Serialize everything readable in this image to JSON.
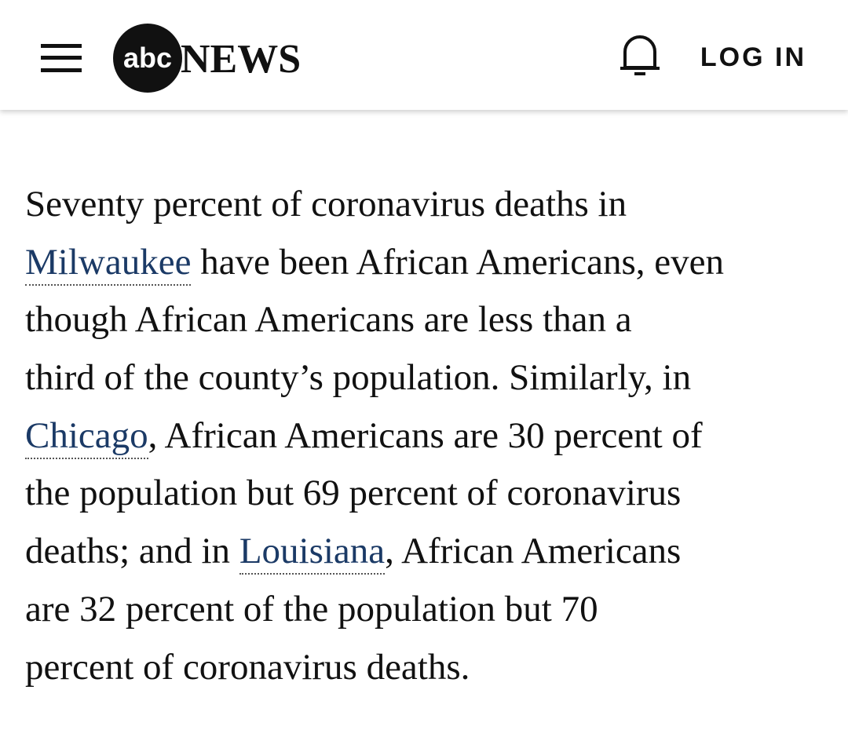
{
  "header": {
    "logo_mark": "abc",
    "logo_text": "NEWS",
    "login": "LOG IN"
  },
  "paragraph": {
    "lines": [
      [
        {
          "text": "Seventy percent of coronavirus deaths in"
        }
      ],
      [
        {
          "link": "Milwaukee"
        },
        {
          "text": " have been African Americans, even"
        }
      ],
      [
        {
          "text": "though African Americans are less than a"
        }
      ],
      [
        {
          "text": "third of the county’s population. Similarly, in"
        }
      ],
      [
        {
          "link": "Chicago"
        },
        {
          "text": ", African Americans are 30 percent of"
        }
      ],
      [
        {
          "text": "the population but 69 percent of coronavirus"
        }
      ],
      [
        {
          "text": "deaths; and in "
        },
        {
          "link": "Louisiana"
        },
        {
          "text": ", African Americans"
        }
      ],
      [
        {
          "text": "are 32 percent of the population but 70"
        }
      ],
      [
        {
          "text": "percent of coronavirus deaths."
        }
      ]
    ]
  }
}
